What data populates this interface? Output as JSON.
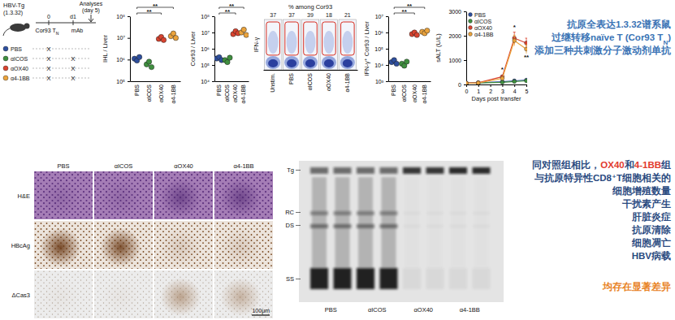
{
  "schematic": {
    "mouse": "HBV-Tg",
    "strain": "(1.3.32)",
    "timepoints": [
      "0",
      "d1"
    ],
    "transfer": "Cor93 T",
    "transfer_subscript": "N",
    "treatment": "mAb",
    "analysis": "Analyses",
    "analysis_day": "(day 5)",
    "groups": [
      {
        "name": "PBS",
        "color": "#2e4f9e",
        "marks": [
          "X"
        ]
      },
      {
        "name": "αICOS",
        "color": "#3f8f3f",
        "marks": [
          "X",
          "X"
        ]
      },
      {
        "name": "αOX40",
        "color": "#d9432f",
        "marks": [
          "X",
          "X"
        ]
      },
      {
        "name": "α4-1BB",
        "color": "#eba33c",
        "marks": [
          "X",
          "X"
        ]
      }
    ]
  },
  "intro": {
    "color": "#3a73b5",
    "lines": [
      [
        {
          "text": "抗原全表达1.3.32谱系鼠"
        }
      ],
      [
        {
          "text": "过继转移naïve T (Cor93 T"
        },
        {
          "text": "N",
          "subscript": true
        },
        {
          "text": ")"
        }
      ],
      [
        {
          "text": "添加三种共刺激分子激动剂单抗"
        }
      ]
    ]
  },
  "chart_data": [
    {
      "type": "dot",
      "y_label": "IHL / Liver",
      "categories": [
        "PBS",
        "αICOS",
        "αOX40",
        "α4-1BB"
      ],
      "colors": [
        "#2e4f9e",
        "#3f8f3f",
        "#d9432f",
        "#eba33c"
      ],
      "values": [
        [
          1100000,
          900000,
          1300000
        ],
        [
          600000,
          800000,
          450000
        ],
        [
          9000000,
          11000000,
          8000000
        ],
        [
          12000000,
          16000000,
          10000000
        ]
      ],
      "log": "y",
      "ylim": [
        100000,
        100000000
      ],
      "yticks": [
        {
          "value": 100000,
          "label": "10⁵"
        },
        {
          "value": 1000000,
          "label": "10⁶"
        },
        {
          "value": 10000000,
          "label": "10⁷"
        },
        {
          "value": 100000000,
          "label": "10⁸"
        }
      ],
      "significance": [
        {
          "label": "**",
          "pair": [
            "PBS",
            "αOX40"
          ]
        },
        {
          "label": "**",
          "pair": [
            "PBS",
            "α4-1BB"
          ]
        }
      ]
    },
    {
      "type": "dot",
      "y_label": "Cor93 / Liver",
      "categories": [
        "PBS",
        "αICOS",
        "αOX40",
        "α4-1BB"
      ],
      "colors": [
        "#2e4f9e",
        "#3f8f3f",
        "#d9432f",
        "#eba33c"
      ],
      "values": [
        [
          250000,
          300000,
          200000
        ],
        [
          200000,
          150000,
          280000
        ],
        [
          8000000,
          12000000,
          9000000
        ],
        [
          10000000,
          15000000,
          7000000
        ]
      ],
      "log": "y",
      "ylim": [
        10000,
        100000000
      ],
      "yticks": [
        {
          "value": 10000,
          "label": "10⁴"
        },
        {
          "value": 100000,
          "label": "10⁵"
        },
        {
          "value": 1000000,
          "label": "10⁶"
        },
        {
          "value": 10000000,
          "label": "10⁷"
        },
        {
          "value": 100000000,
          "label": "10⁸"
        }
      ],
      "significance": [
        {
          "label": "**",
          "pair": [
            "PBS",
            "αOX40"
          ]
        },
        {
          "label": "**",
          "pair": [
            "PBS",
            "α4-1BB"
          ]
        }
      ]
    },
    {
      "type": "flow",
      "title": "% among Cor93",
      "y_label": "IFN-γ",
      "categories": [
        "Unstim.",
        "PBS",
        "αICOS",
        "αOX40",
        "α4-1BB"
      ],
      "values": [
        37,
        37,
        39,
        18,
        21
      ],
      "data_labels": true
    },
    {
      "type": "dot",
      "y_label": "IFN-γ⁺ Cor93 / Liver",
      "categories": [
        "PBS",
        "αICOS",
        "αOX40",
        "α4-1BB"
      ],
      "colors": [
        "#2e4f9e",
        "#3f8f3f",
        "#d9432f",
        "#eba33c"
      ],
      "values": [
        [
          15000,
          20000,
          12000
        ],
        [
          12000,
          9000,
          16000
        ],
        [
          800000,
          1000000,
          700000
        ],
        [
          1100000,
          900000,
          1300000
        ]
      ],
      "log": "y",
      "ylim": [
        1000,
        10000000
      ],
      "yticks": [
        {
          "value": 1000,
          "label": "10³"
        },
        {
          "value": 10000,
          "label": "10⁴"
        },
        {
          "value": 100000,
          "label": "10⁵"
        },
        {
          "value": 1000000,
          "label": "10⁶"
        },
        {
          "value": 10000000,
          "label": "10⁷"
        }
      ],
      "significance": [
        {
          "label": "**",
          "pair": [
            "PBS",
            "αOX40"
          ]
        },
        {
          "label": "**",
          "pair": [
            "PBS",
            "α4-1BB"
          ]
        }
      ]
    },
    {
      "type": "line",
      "y_label": "sALT (U/L)",
      "x_label": "Days post transfer",
      "x": [
        0,
        1,
        3,
        4,
        5
      ],
      "xlim": [
        0,
        5
      ],
      "xticks": [
        0,
        1,
        2,
        3,
        4,
        5
      ],
      "ylim": [
        0,
        3000
      ],
      "yticks": [
        0,
        1000,
        2000,
        3000
      ],
      "legend": "top-left",
      "marker": "circle",
      "series": [
        {
          "name": "PBS",
          "color": "#2e4f9e",
          "values": [
            60,
            70,
            110,
            150,
            180
          ],
          "errors": [
            10,
            10,
            20,
            30,
            30
          ]
        },
        {
          "name": "αICOS",
          "color": "#3f8f3f",
          "values": [
            50,
            60,
            90,
            120,
            150
          ],
          "errors": [
            10,
            10,
            15,
            25,
            30
          ]
        },
        {
          "name": "αOX40",
          "color": "#d9432f",
          "values": [
            60,
            70,
            320,
            1900,
            1700
          ],
          "errors": [
            10,
            10,
            60,
            250,
            200
          ]
        },
        {
          "name": "α4-1BB",
          "color": "#eba33c",
          "values": [
            55,
            65,
            250,
            1800,
            1450
          ],
          "errors": [
            10,
            10,
            50,
            220,
            180
          ]
        }
      ],
      "annotations": [
        {
          "text": "*",
          "x": 3,
          "y": 520
        },
        {
          "text": "*",
          "x": 4,
          "y": 2280
        },
        {
          "text": "**",
          "x": 5,
          "y": 1050
        }
      ]
    }
  ],
  "histology": {
    "columns": [
      "PBS",
      "αICOS",
      "αOX40",
      "α4-1BB"
    ],
    "rows": [
      {
        "name": "H&E",
        "signal": [
          0.2,
          0.2,
          0.6,
          0.6
        ]
      },
      {
        "name": "HBcAg",
        "signal": [
          0.9,
          0.85,
          0.15,
          0.15
        ]
      },
      {
        "name": "ΔCas3",
        "signal": [
          0.05,
          0.05,
          0.5,
          0.4
        ]
      }
    ],
    "scale_bar": "100μm"
  },
  "blot": {
    "lanes": [
      "PBS",
      "αICOS",
      "αOX40",
      "α4-1BB"
    ],
    "bands": [
      {
        "label": "Tg",
        "intensity": [
          0.55,
          0.55,
          0.8,
          0.85
        ]
      },
      {
        "label": "RC",
        "intensity": [
          0.35,
          0.35,
          0.02,
          0.02
        ]
      },
      {
        "label": "DS",
        "intensity": [
          0.45,
          0.45,
          0.02,
          0.02
        ]
      },
      {
        "label": "SS",
        "intensity": [
          0.9,
          0.9,
          0.05,
          0.05
        ]
      }
    ]
  },
  "summary": {
    "color": "#2a4a7f",
    "lines": [
      [
        {
          "text": "同对照组相比，"
        },
        {
          "text": "OX40",
          "color": "#e23b2e"
        },
        {
          "text": "和"
        },
        {
          "text": "4-1BB",
          "color": "#e23b2e"
        },
        {
          "text": "组"
        }
      ],
      [
        {
          "text": "与抗原特异性CD8⁺T细胞相关的"
        }
      ],
      [
        {
          "text": "细胞增殖数量"
        }
      ],
      [
        {
          "text": "干扰素产生"
        }
      ],
      [
        {
          "text": "肝脏炎症"
        }
      ],
      [
        {
          "text": "抗原清除"
        }
      ],
      [
        {
          "text": "细胞凋亡"
        }
      ],
      [
        {
          "text": "HBV病载"
        }
      ]
    ],
    "conclusion": {
      "text": "均存在显著差异",
      "color": "#e8821e"
    }
  }
}
